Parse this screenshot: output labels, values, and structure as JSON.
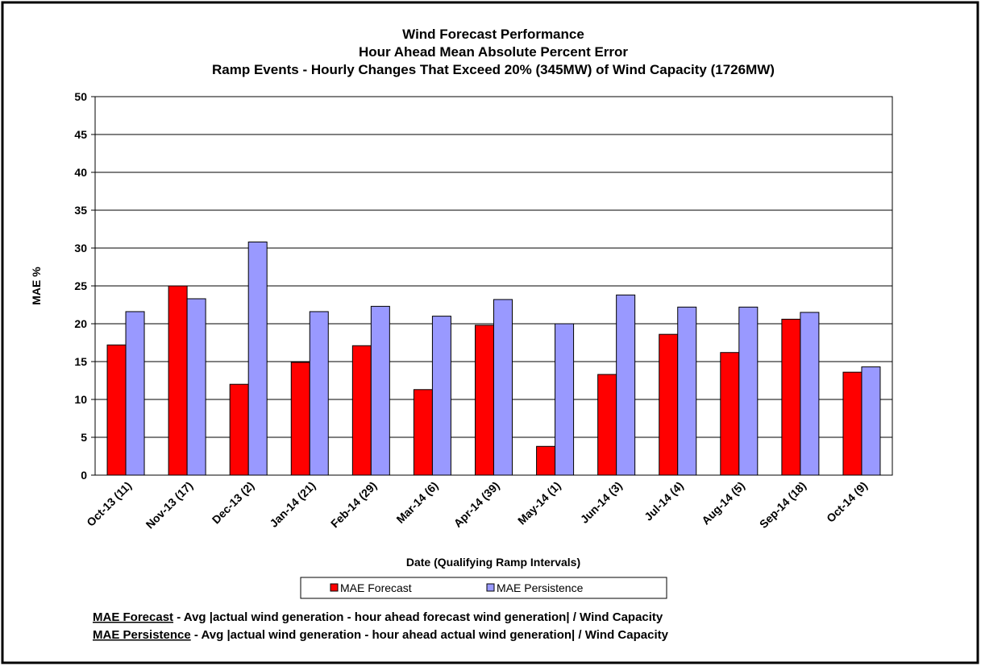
{
  "chart_data": {
    "type": "bar",
    "title": [
      "Wind Forecast Performance",
      "Hour Ahead Mean Absolute Percent Error",
      "Ramp Events - Hourly Changes That Exceed 20% (345MW) of Wind Capacity (1726MW)"
    ],
    "y_label": "MAE %",
    "x_label": "Date (Qualifying Ramp Intervals)",
    "categories": [
      "Oct-13 (11)",
      "Nov-13 (17)",
      "Dec-13 (2)",
      "Jan-14 (21)",
      "Feb-14 (29)",
      "Mar-14 (6)",
      "Apr-14 (39)",
      "May-14 (1)",
      "Jun-14 (3)",
      "Jul-14 (4)",
      "Aug-14 (5)",
      "Sep-14 (18)",
      "Oct-14 (9)"
    ],
    "series": [
      {
        "name": "MAE Forecast",
        "color": "#ff0000",
        "values": [
          17.2,
          25,
          12,
          14.9,
          17.1,
          11.3,
          19.8,
          3.8,
          13.3,
          18.6,
          16.2,
          20.6,
          13.6
        ]
      },
      {
        "name": "MAE Persistence",
        "color": "#9999ff",
        "values": [
          21.6,
          23.3,
          30.8,
          21.6,
          22.3,
          21.0,
          23.2,
          20.0,
          23.8,
          22.2,
          22.2,
          21.5,
          14.3
        ]
      }
    ],
    "ylim": [
      0,
      50
    ],
    "yticks": [
      0,
      5,
      10,
      15,
      20,
      25,
      30,
      35,
      40,
      45,
      50
    ],
    "grid": true,
    "notes": [
      {
        "term": "MAE Forecast",
        "text": " - Avg |actual wind generation - hour ahead forecast wind generation| / Wind Capacity"
      },
      {
        "term": "MAE Persistence",
        "text": " - Avg |actual wind generation - hour ahead actual wind generation| / Wind Capacity"
      }
    ]
  }
}
